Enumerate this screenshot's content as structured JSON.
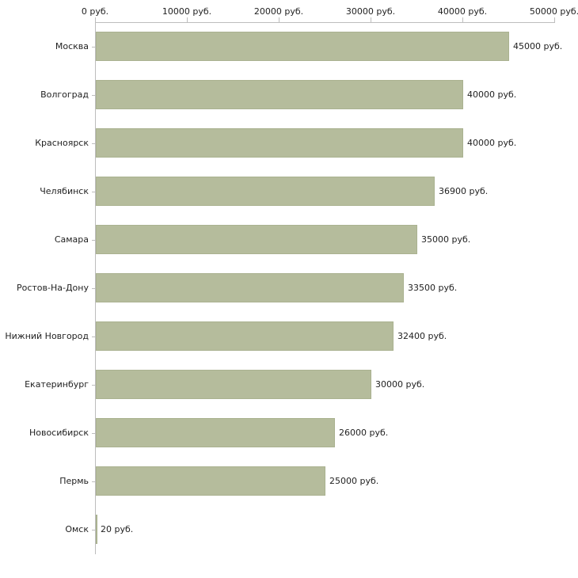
{
  "chart_data": {
    "type": "bar",
    "orientation": "horizontal",
    "title": "",
    "xlabel": "",
    "ylabel": "",
    "xlim": [
      0,
      50000
    ],
    "grid": false,
    "legend": "none",
    "bar_color": "#b5bc9c",
    "bar_border_color": "#aab290",
    "categories": [
      "Москва",
      "Волгоград",
      "Красноярск",
      "Челябинск",
      "Самара",
      "Ростов-На-Дону",
      "Нижний Новгород",
      "Екатеринбург",
      "Новосибирск",
      "Пермь",
      "Омск"
    ],
    "values": [
      45000,
      40000,
      40000,
      36900,
      35000,
      33500,
      32400,
      30000,
      26000,
      25000,
      20
    ],
    "value_labels": [
      "45000 руб.",
      "40000 руб.",
      "40000 руб.",
      "36900 руб.",
      "35000 руб.",
      "33500 руб.",
      "32400 руб.",
      "30000 руб.",
      "26000 руб.",
      "25000 руб.",
      "20 руб."
    ],
    "x_ticks": [
      {
        "value": 0,
        "label": "0 руб."
      },
      {
        "value": 10000,
        "label": "10000 руб."
      },
      {
        "value": 20000,
        "label": "20000 руб."
      },
      {
        "value": 30000,
        "label": "30000 руб."
      },
      {
        "value": 40000,
        "label": "40000 руб."
      },
      {
        "value": 50000,
        "label": "50000 руб."
      }
    ]
  }
}
